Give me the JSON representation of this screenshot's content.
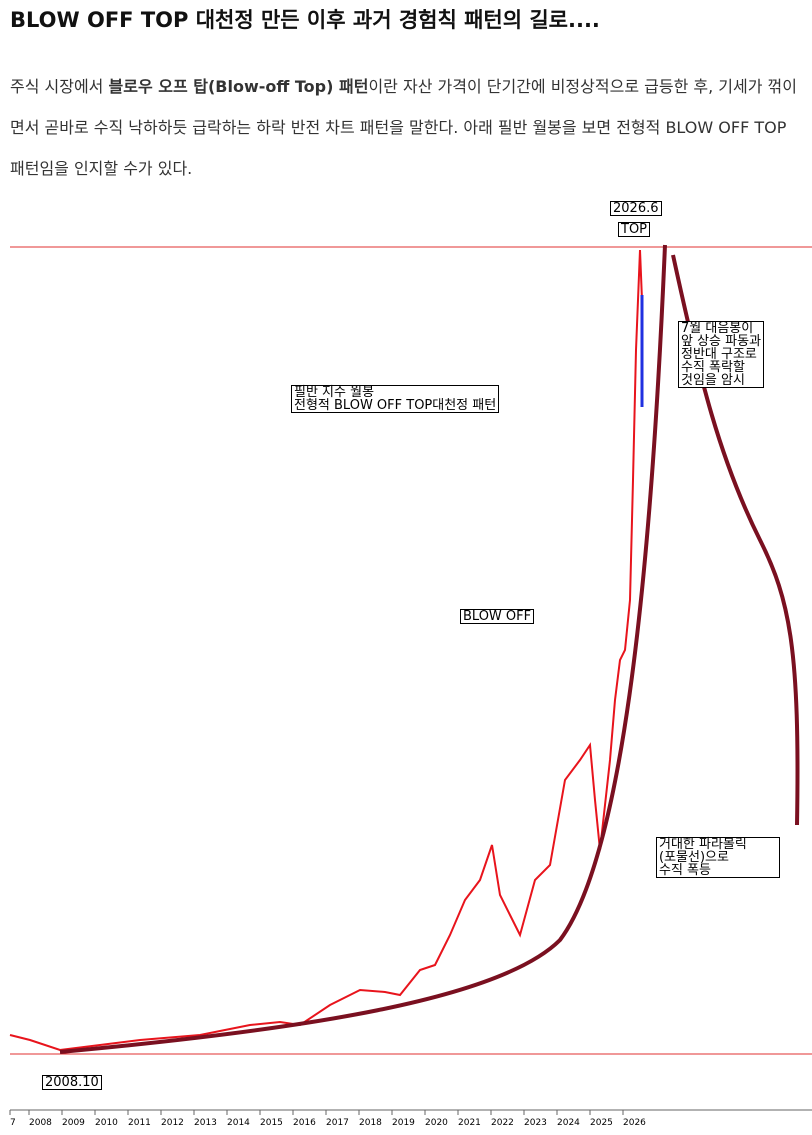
{
  "header": {
    "title": "BLOW OFF TOP 대천정 만든 이후 과거 경험칙 패턴의 길로...."
  },
  "body": {
    "paragraph": {
      "before": "주식 시장에서 ",
      "bold": "블로우 오프 탑(Blow-off Top) 패턴",
      "after": "이란 자산 가격이 단기간에 비정상적으로 급등한 후, 기세가 꺾이면서 곧바로 수직 낙하하듯 급락하는 하락 반전 차트 패턴을 말한다. 아래 필반 월봉을 보면 전형적 BLOW OFF TOP패턴임을 인지할 수가 있다."
    }
  },
  "figure": {
    "top_date": "2026.6",
    "top_label": "TOP",
    "note_drop": [
      "7월 대음봉이",
      "앞 상승 파동과",
      "정반대 구조로",
      "수직 폭락할",
      "것임을 암시"
    ],
    "note_index": [
      "필반 지수 월봉",
      "전형적 BLOW OFF TOP대천정 패턴"
    ],
    "note_blowoff": "BLOW OFF",
    "note_parabolic": [
      "거대한 파라볼릭",
      "(포물선)으로",
      "수직 폭등"
    ],
    "bottom_date": "2008.10",
    "x_labels": [
      "7",
      "2008",
      "2009",
      "2010",
      "2011",
      "2012",
      "2013",
      "2014",
      "2015",
      "2016",
      "2017",
      "2018",
      "2019",
      "2020",
      "2021",
      "2022",
      "2023",
      "2024",
      "2025",
      "2026"
    ]
  }
}
